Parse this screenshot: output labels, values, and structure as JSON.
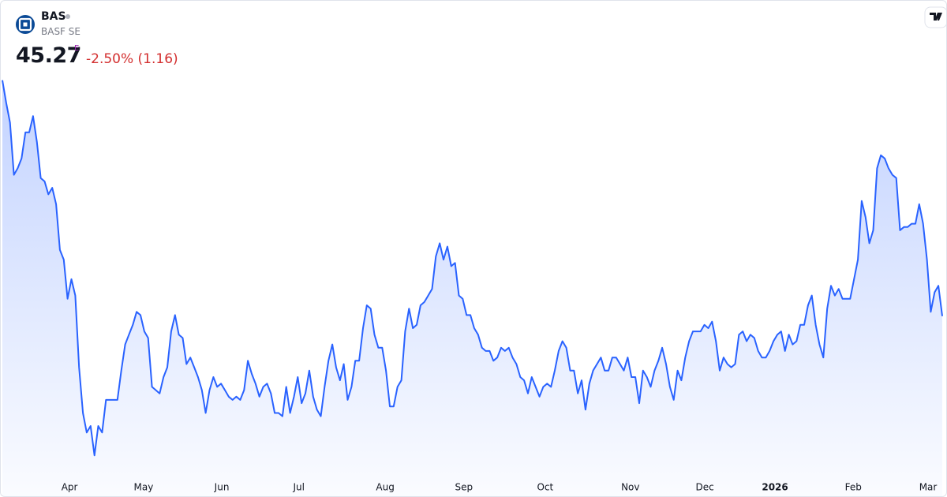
{
  "header": {
    "symbol": "BAS",
    "name": "BASF SE",
    "price": "45.27",
    "price_flag": "E",
    "change": "-2.50% (1.16)"
  },
  "chart_data": {
    "type": "area",
    "series": [
      {
        "name": "BAS",
        "color": "#2962ff",
        "values": [
          52.5,
          51.8,
          51.2,
          49.6,
          49.8,
          50.1,
          50.9,
          50.9,
          51.4,
          50.6,
          49.5,
          49.4,
          49.0,
          49.2,
          48.7,
          47.3,
          47.0,
          45.8,
          46.4,
          45.9,
          43.7,
          42.3,
          41.7,
          41.9,
          41.0,
          41.9,
          41.7,
          42.7,
          42.7,
          42.7,
          42.7,
          43.6,
          44.4,
          44.7,
          45.0,
          45.4,
          45.3,
          44.8,
          44.6,
          43.1,
          43.0,
          42.9,
          43.4,
          43.7,
          44.8,
          45.3,
          44.7,
          44.6,
          43.8,
          44.0,
          43.7,
          43.4,
          43.0,
          42.3,
          43.0,
          43.4,
          43.1,
          43.2,
          43.0,
          42.8,
          42.7,
          42.8,
          42.7,
          43.0,
          43.9,
          43.5,
          43.2,
          42.8,
          43.1,
          43.2,
          42.9,
          42.3,
          42.3,
          42.2,
          43.1,
          42.3,
          42.8,
          43.4,
          42.6,
          42.9,
          43.6,
          42.8,
          42.4,
          42.2,
          43.1,
          43.9,
          44.4,
          43.7,
          43.3,
          43.8,
          42.7,
          43.1,
          43.9,
          43.9,
          44.9,
          45.6,
          45.5,
          44.7,
          44.3,
          44.3,
          43.6,
          42.5,
          42.5,
          43.1,
          43.3,
          44.8,
          45.5,
          44.9,
          45.0,
          45.6,
          45.7,
          45.9,
          46.1,
          47.1,
          47.5,
          47.0,
          47.4,
          46.8,
          46.9,
          45.9,
          45.8,
          45.3,
          45.3,
          44.9,
          44.7,
          44.3,
          44.2,
          44.2,
          43.9,
          44.0,
          44.3,
          44.2,
          44.3,
          44.0,
          43.8,
          43.4,
          43.3,
          42.9,
          43.4,
          43.1,
          42.8,
          43.1,
          43.2,
          43.1,
          43.6,
          44.2,
          44.5,
          44.3,
          43.6,
          43.6,
          42.9,
          43.3,
          42.4,
          43.2,
          43.6,
          43.8,
          44.0,
          43.6,
          43.6,
          44.0,
          44.0,
          43.8,
          43.6,
          44.0,
          43.4,
          43.4,
          42.6,
          43.6,
          43.4,
          43.1,
          43.6,
          43.9,
          44.3,
          43.8,
          43.1,
          42.7,
          43.6,
          43.3,
          44.0,
          44.5,
          44.8,
          44.8,
          44.8,
          45.0,
          44.9,
          45.1,
          44.5,
          43.6,
          44.0,
          43.8,
          43.7,
          43.8,
          44.7,
          44.8,
          44.5,
          44.7,
          44.6,
          44.2,
          44.0,
          44.0,
          44.2,
          44.5,
          44.7,
          44.8,
          44.2,
          44.7,
          44.4,
          44.5,
          45.0,
          45.0,
          45.6,
          45.9,
          45.0,
          44.4,
          44.0,
          45.5,
          46.2,
          45.9,
          46.1,
          45.8,
          45.8,
          45.8,
          46.4,
          47.0,
          48.8,
          48.3,
          47.5,
          47.9,
          49.8,
          50.2,
          50.1,
          49.8,
          49.6,
          49.5,
          47.9,
          48.0,
          48.0,
          48.1,
          48.1,
          48.7,
          48.1,
          47.0,
          45.4,
          46.0,
          46.2,
          45.27
        ]
      }
    ],
    "ylim": [
      39.7,
      53.0
    ],
    "xticks": [
      {
        "value": 17.5,
        "label": "Apr"
      },
      {
        "value": 36.8,
        "label": "May"
      },
      {
        "value": 57.2,
        "label": "Jun"
      },
      {
        "value": 77.3,
        "label": "Jul"
      },
      {
        "value": 99.8,
        "label": "Aug"
      },
      {
        "value": 120.3,
        "label": "Sep"
      },
      {
        "value": 141.5,
        "label": "Oct"
      },
      {
        "value": 163.7,
        "label": "Nov"
      },
      {
        "value": 183.1,
        "label": "Dec"
      },
      {
        "value": 201.4,
        "label": "2026",
        "bold": true
      },
      {
        "value": 221.8,
        "label": "Feb"
      },
      {
        "value": 241.3,
        "label": "Mar"
      }
    ]
  }
}
